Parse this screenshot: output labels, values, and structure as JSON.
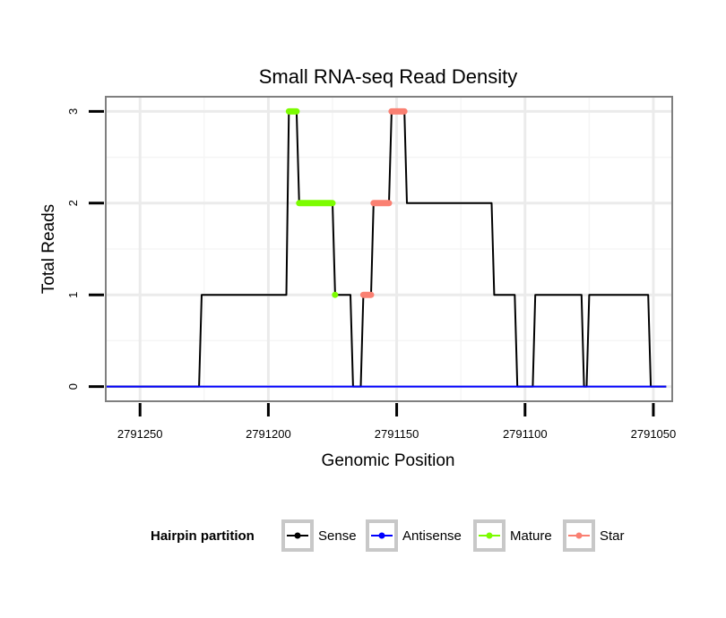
{
  "chart_data": {
    "type": "line",
    "title": "Small RNA-seq Read Density",
    "xlabel": "Genomic Position",
    "ylabel": "Total Reads",
    "xlim": [
      2791263,
      2791043
    ],
    "x_reversed": true,
    "ylim": [
      -0.15,
      3.15
    ],
    "x_ticks": [
      2791250,
      2791200,
      2791150,
      2791100,
      2791050
    ],
    "x_tick_labels": [
      "2791250",
      "2791200",
      "2791150",
      "2791100",
      "2791050"
    ],
    "y_ticks": [
      0,
      1,
      2,
      3
    ],
    "y_tick_labels": [
      "0",
      "1",
      "2",
      "3"
    ],
    "grid": true,
    "legend": {
      "title": "Hairpin partition",
      "position": "bottom",
      "entries": [
        {
          "label": "Sense",
          "color": "#000000"
        },
        {
          "label": "Antisense",
          "color": "#0000FF"
        },
        {
          "label": "Mature",
          "color": "#7CFC00"
        },
        {
          "label": "Star",
          "color": "#FA8072"
        }
      ]
    },
    "series": [
      {
        "name": "Sense",
        "color": "#000000",
        "style": "line",
        "x": [
          2791263,
          2791227,
          2791226,
          2791193,
          2791192,
          2791189,
          2791188,
          2791175,
          2791174,
          2791168,
          2791167,
          2791164,
          2791163,
          2791160,
          2791159,
          2791153,
          2791152,
          2791147,
          2791146,
          2791113,
          2791112,
          2791104,
          2791103,
          2791097,
          2791096,
          2791078,
          2791077,
          2791076,
          2791075,
          2791052,
          2791051,
          2791045
        ],
        "y": [
          0,
          0,
          1,
          1,
          3,
          3,
          2,
          2,
          1,
          1,
          0,
          0,
          1,
          1,
          2,
          2,
          3,
          3,
          2,
          2,
          1,
          1,
          0,
          0,
          1,
          1,
          0,
          0,
          1,
          1,
          0,
          0
        ]
      },
      {
        "name": "Antisense",
        "color": "#0000FF",
        "style": "line",
        "x": [
          2791263,
          2791045
        ],
        "y": [
          0,
          0
        ]
      },
      {
        "name": "Mature",
        "color": "#7CFC00",
        "style": "points",
        "segments": [
          {
            "x": [
              2791192,
              2791189
            ],
            "y": 3
          },
          {
            "x": [
              2791188,
              2791175
            ],
            "y": 2
          },
          {
            "x": [
              2791174,
              2791174
            ],
            "y": 1
          }
        ]
      },
      {
        "name": "Star",
        "color": "#FA8072",
        "style": "points",
        "segments": [
          {
            "x": [
              2791163,
              2791160
            ],
            "y": 1
          },
          {
            "x": [
              2791159,
              2791153
            ],
            "y": 2
          },
          {
            "x": [
              2791152,
              2791147
            ],
            "y": 3
          }
        ]
      }
    ]
  }
}
